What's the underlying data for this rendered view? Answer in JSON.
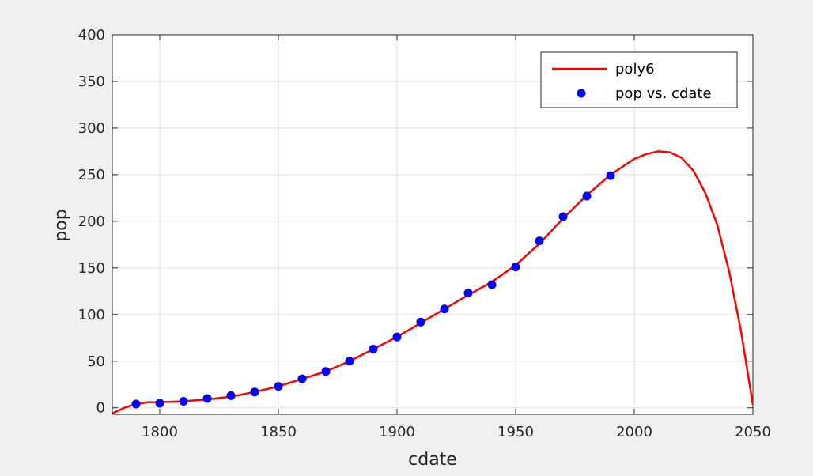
{
  "chart_data": {
    "type": "scatter",
    "title": "",
    "xlabel": "cdate",
    "ylabel": "pop",
    "xlim": [
      1780,
      2050
    ],
    "ylim": [
      -7,
      400
    ],
    "xticks": [
      1800,
      1850,
      1900,
      1950,
      2000,
      2050
    ],
    "yticks": [
      0,
      50,
      100,
      150,
      200,
      250,
      300,
      350,
      400
    ],
    "grid": true,
    "legend_position": "top-right",
    "series": [
      {
        "name": "poly6",
        "kind": "line",
        "color": "#ff0000",
        "x": [
          1780,
          1785,
          1790,
          1795,
          1800,
          1810,
          1820,
          1830,
          1840,
          1850,
          1860,
          1870,
          1880,
          1890,
          1900,
          1910,
          1920,
          1930,
          1940,
          1950,
          1960,
          1970,
          1980,
          1990,
          2000,
          2005,
          2010,
          2015,
          2020,
          2025,
          2030,
          2035,
          2040,
          2045,
          2050
        ],
        "y": [
          -6,
          0,
          4,
          6,
          6,
          7,
          9,
          12,
          17,
          23,
          31,
          39,
          50,
          63,
          76,
          91,
          106,
          121,
          135,
          153,
          176,
          203,
          228,
          250,
          267,
          272,
          275,
          274,
          268,
          254,
          230,
          196,
          146,
          82,
          3
        ]
      },
      {
        "name": "pop vs. cdate",
        "kind": "scatter",
        "color": "#0000ff",
        "x": [
          1790,
          1800,
          1810,
          1820,
          1830,
          1840,
          1850,
          1860,
          1870,
          1880,
          1890,
          1900,
          1910,
          1920,
          1930,
          1940,
          1950,
          1960,
          1970,
          1980,
          1990
        ],
        "y": [
          4,
          5,
          7,
          10,
          13,
          17,
          23,
          31,
          39,
          50,
          63,
          76,
          92,
          106,
          123,
          132,
          151,
          179,
          205,
          227,
          249
        ]
      }
    ]
  }
}
